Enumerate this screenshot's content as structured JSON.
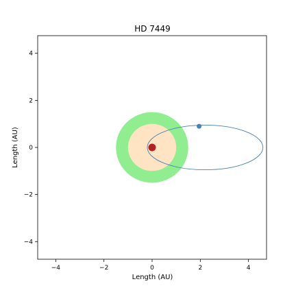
{
  "chart_data": {
    "type": "scatter",
    "title": "HD 7449",
    "xlabel": "Length (AU)",
    "ylabel": "Length (AU)",
    "xlim": [
      -4.75,
      4.75
    ],
    "ylim": [
      -4.75,
      4.75
    ],
    "xticks": [
      -4,
      -2,
      0,
      2,
      4
    ],
    "yticks": [
      -4,
      -2,
      0,
      2,
      4
    ],
    "xtick_labels": [
      "−4",
      "−2",
      "0",
      "2",
      "4"
    ],
    "ytick_labels": [
      "−4",
      "−2",
      "0",
      "2",
      "4"
    ],
    "grid": false,
    "legend": "none",
    "habitable_zone": {
      "center": [
        0,
        0
      ],
      "outer_radius_au": 1.5,
      "inner_radius_au": 1.0,
      "outer_color": "#90ee90",
      "inner_color": "#ffe4c4"
    },
    "star": {
      "x": 0,
      "y": 0,
      "color": "#b22222"
    },
    "orbit": {
      "center": [
        2.2,
        0
      ],
      "semi_major_au": 2.4,
      "semi_minor_au": 0.95,
      "color": "#4682b4"
    },
    "planet": {
      "x": 1.95,
      "y": 0.9,
      "color": "#4682b4"
    }
  }
}
